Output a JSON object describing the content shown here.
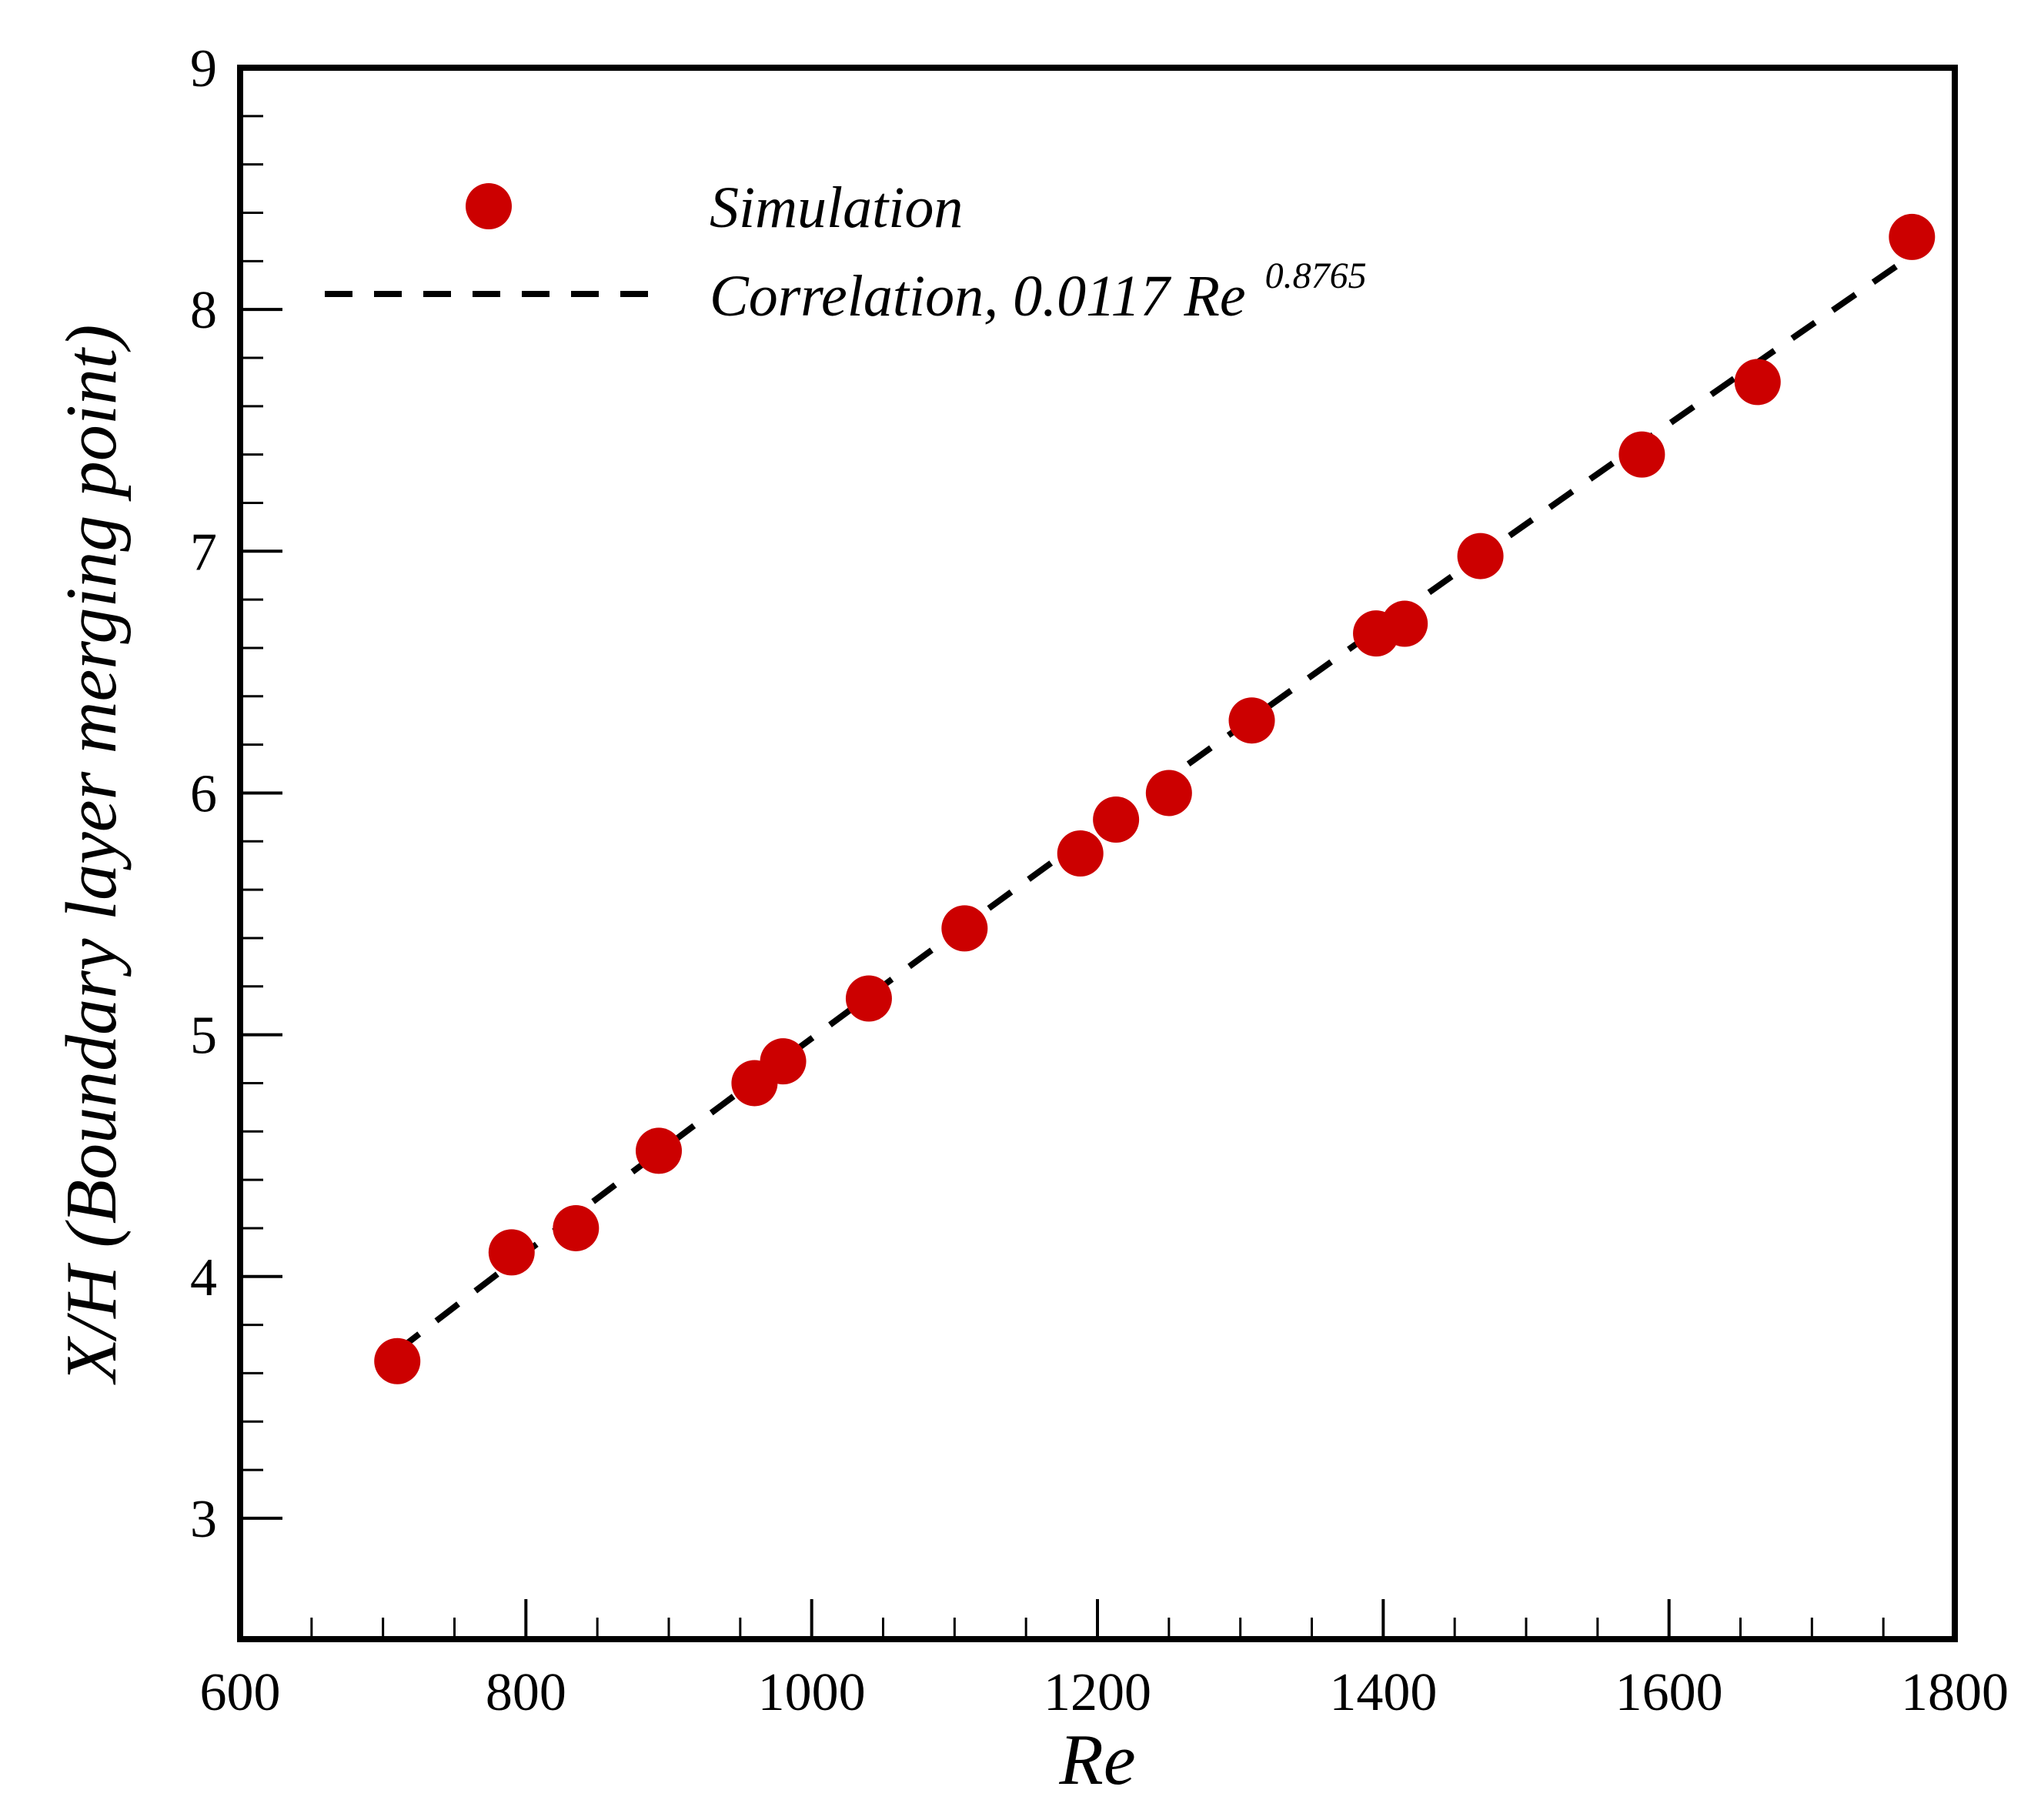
{
  "chart_data": {
    "type": "scatter",
    "title": "",
    "xlabel": "Re",
    "ylabel": "X/H (Boundary layer merging point)",
    "xlim": [
      600,
      1800
    ],
    "ylim": [
      2.5,
      9
    ],
    "x_major_ticks": [
      600,
      800,
      1000,
      1200,
      1400,
      1600,
      1800
    ],
    "x_minor_step": 50,
    "y_major_ticks": [
      3,
      4,
      5,
      6,
      7,
      8,
      9
    ],
    "y_minor_step": 0.2,
    "grid": false,
    "legend_position": "top-left",
    "colors": {
      "marker": "#cc0000",
      "correlation_line": "#000000",
      "axes": "#000000"
    },
    "series": [
      {
        "name": "Simulation",
        "kind": "markers",
        "x": [
          710,
          790,
          835,
          893,
          960,
          980,
          1040,
          1107,
          1188,
          1213,
          1250,
          1308,
          1395,
          1415,
          1468,
          1581,
          1662,
          1770
        ],
        "y": [
          3.65,
          4.1,
          4.2,
          4.52,
          4.8,
          4.89,
          5.15,
          5.44,
          5.75,
          5.89,
          6.0,
          6.3,
          6.66,
          6.7,
          6.98,
          7.4,
          7.7,
          8.3
        ]
      },
      {
        "name": "Correlation",
        "kind": "dashed-line",
        "coefficient": 0.0117,
        "exponent": 0.8765,
        "x_range": [
          710,
          1760
        ]
      }
    ],
    "legend": {
      "simulation_label": "Simulation",
      "correlation_prefix": "Correlation, 0.0117 Re",
      "correlation_exponent": "0.8765"
    }
  }
}
